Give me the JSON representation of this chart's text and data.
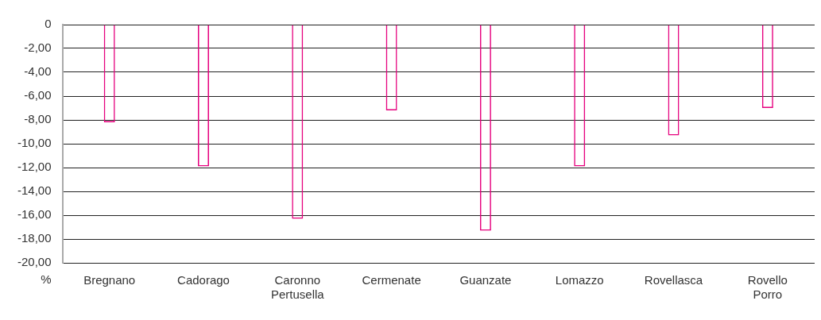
{
  "chart_data": {
    "type": "bar",
    "ylabel": "%",
    "categories": [
      "Bregnano",
      "Cadorago",
      "Caronno Pertusella",
      "Cermenate",
      "Guanzate",
      "Lomazzo",
      "Rovellasca",
      "Rovello Porro"
    ],
    "series": [
      {
        "color": "#e6007e",
        "values": [
          -8.2,
          -11.9,
          -16.3,
          -7.2,
          -17.3,
          -11.9,
          -9.3,
          -7.0
        ]
      }
    ],
    "ylim": [
      -20,
      0
    ],
    "yticks": [
      0,
      {
        "value": -2,
        "label": "-2,00"
      },
      {
        "value": -4,
        "label": "-4,00"
      },
      {
        "value": -6,
        "label": "-6,00"
      },
      {
        "value": -8,
        "label": "-8,00"
      },
      {
        "value": -10,
        "label": "-10,00"
      },
      {
        "value": -12,
        "label": "-12,00"
      },
      {
        "value": -14,
        "label": "-14,00"
      },
      {
        "value": -16,
        "label": "-16,00"
      },
      {
        "value": -18,
        "label": "-18,00"
      },
      {
        "value": -20,
        "label": "-20,00"
      }
    ],
    "grid": "y",
    "legend": false
  }
}
